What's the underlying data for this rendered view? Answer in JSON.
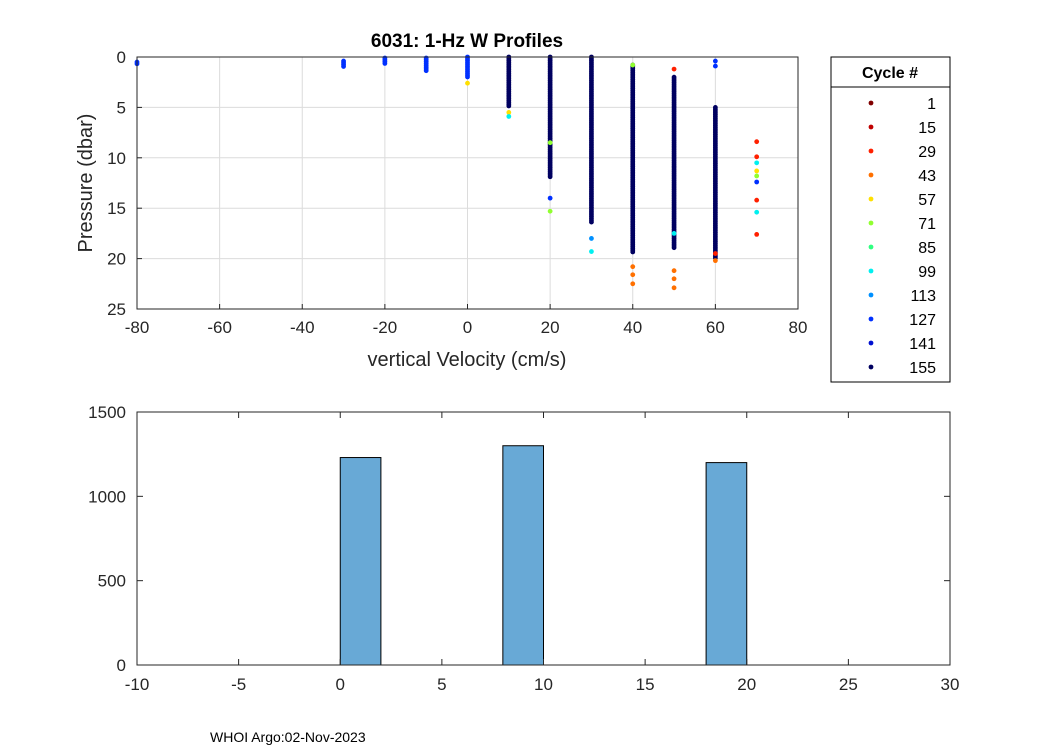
{
  "chart_data": [
    {
      "type": "scatter",
      "title": "6031: 1-Hz W Profiles",
      "xlabel": "vertical Velocity (cm/s)",
      "ylabel": "Pressure (dbar)",
      "xlim": [
        -80,
        80
      ],
      "ylim": [
        0,
        25
      ],
      "y_reversed": true,
      "grid": true,
      "xticks": [
        "-80",
        "-60",
        "-40",
        "-20",
        "0",
        "20",
        "40",
        "60",
        "80"
      ],
      "yticks": [
        "0",
        "5",
        "10",
        "15",
        "20",
        "25"
      ],
      "legend": {
        "title": "Cycle #",
        "placement": "outside-right",
        "entries": [
          {
            "label": "1",
            "color": "#800000"
          },
          {
            "label": "15",
            "color": "#c00000"
          },
          {
            "label": "29",
            "color": "#ff2000"
          },
          {
            "label": "43",
            "color": "#ff7000"
          },
          {
            "label": "57",
            "color": "#ffe000"
          },
          {
            "label": "71",
            "color": "#90ff30"
          },
          {
            "label": "85",
            "color": "#30ff80"
          },
          {
            "label": "99",
            "color": "#00f0f0"
          },
          {
            "label": "113",
            "color": "#0090ff"
          },
          {
            "label": "127",
            "color": "#0030ff"
          },
          {
            "label": "141",
            "color": "#0010d0"
          },
          {
            "label": "155",
            "color": "#000060"
          }
        ]
      },
      "columns": [
        {
          "x": -80,
          "ymin": 0.5,
          "ymax": 0.8,
          "color": "#0030ff",
          "outliers": []
        },
        {
          "x": -30,
          "ymin": 0.4,
          "ymax": 1.1,
          "color": "#0030ff",
          "outliers": []
        },
        {
          "x": -20,
          "ymin": 0.1,
          "ymax": 0.8,
          "color": "#0030ff",
          "outliers": []
        },
        {
          "x": -10,
          "ymin": 0.1,
          "ymax": 1.5,
          "color": "#0030ff",
          "outliers": []
        },
        {
          "x": 0,
          "ymin": 0.0,
          "ymax": 2.0,
          "color": "#0030ff",
          "outliers": [
            {
              "y": 2.6,
              "color": "#ffe000"
            }
          ]
        },
        {
          "x": 10,
          "ymin": 0.0,
          "ymax": 5.0,
          "color": "#000060",
          "outliers": [
            {
              "y": 5.5,
              "color": "#ffe000"
            },
            {
              "y": 5.9,
              "color": "#00f0f0"
            }
          ]
        },
        {
          "x": 20,
          "ymin": 0.0,
          "ymax": 12.0,
          "color": "#000060",
          "outliers": [
            {
              "y": 8.5,
              "color": "#90ff30"
            },
            {
              "y": 14.0,
              "color": "#0030ff"
            },
            {
              "y": 15.3,
              "color": "#90ff30"
            }
          ]
        },
        {
          "x": 30,
          "ymin": 0.0,
          "ymax": 16.5,
          "color": "#000060",
          "outliers": [
            {
              "y": 18.0,
              "color": "#0090ff"
            },
            {
              "y": 19.3,
              "color": "#00f0f0"
            }
          ]
        },
        {
          "x": 40,
          "ymin": 0.8,
          "ymax": 19.5,
          "color": "#000060",
          "outliers": [
            {
              "y": 0.8,
              "color": "#90ff30"
            },
            {
              "y": 20.8,
              "color": "#ff7000"
            },
            {
              "y": 21.6,
              "color": "#ff7000"
            },
            {
              "y": 22.5,
              "color": "#ff7000"
            }
          ]
        },
        {
          "x": 50,
          "ymin": 2.0,
          "ymax": 19.0,
          "color": "#000060",
          "outliers": [
            {
              "y": 1.2,
              "color": "#ff2000"
            },
            {
              "y": 17.5,
              "color": "#00f0f0"
            },
            {
              "y": 21.2,
              "color": "#ff7000"
            },
            {
              "y": 22.0,
              "color": "#ff7000"
            },
            {
              "y": 22.9,
              "color": "#ff7000"
            }
          ]
        },
        {
          "x": 60,
          "ymin": 5.0,
          "ymax": 20.0,
          "color": "#000060",
          "outliers": [
            {
              "y": 0.4,
              "color": "#0030ff"
            },
            {
              "y": 0.9,
              "color": "#0030ff"
            },
            {
              "y": 19.5,
              "color": "#ff2000"
            },
            {
              "y": 20.2,
              "color": "#ff7000"
            }
          ]
        },
        {
          "x": 70,
          "ymin": 8.4,
          "ymax": 8.4,
          "color": "#ff2000",
          "outliers": [
            {
              "y": 9.9,
              "color": "#ff2000"
            },
            {
              "y": 10.5,
              "color": "#00f0f0"
            },
            {
              "y": 11.3,
              "color": "#ffe000"
            },
            {
              "y": 11.8,
              "color": "#90ff30"
            },
            {
              "y": 12.4,
              "color": "#0030ff"
            },
            {
              "y": 14.2,
              "color": "#ff2000"
            },
            {
              "y": 15.4,
              "color": "#00f0f0"
            },
            {
              "y": 17.6,
              "color": "#ff2000"
            }
          ]
        }
      ]
    },
    {
      "type": "bar",
      "title": "",
      "xlabel": "",
      "ylabel": "",
      "xlim": [
        -10,
        30
      ],
      "ylim": [
        0,
        1500
      ],
      "grid": false,
      "xticks": [
        "-10",
        "-5",
        "0",
        "5",
        "10",
        "15",
        "20",
        "25",
        "30"
      ],
      "yticks": [
        "0",
        "500",
        "1000",
        "1500"
      ],
      "bin_width": 2,
      "bar_color": "#68a9d6",
      "bins": [
        {
          "x0": 0,
          "x1": 2,
          "value": 1230
        },
        {
          "x0": 8,
          "x1": 10,
          "value": 1300
        },
        {
          "x0": 18,
          "x1": 20,
          "value": 1200
        }
      ]
    }
  ],
  "footer": "WHOI Argo:02-Nov-2023"
}
